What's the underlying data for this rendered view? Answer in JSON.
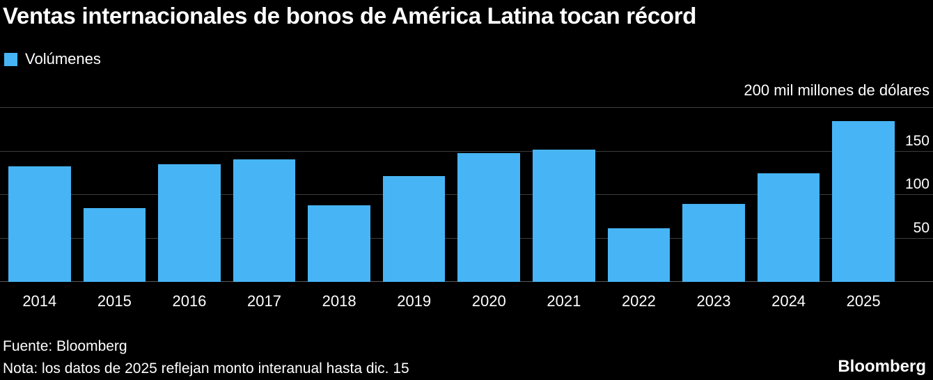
{
  "title": "Ventas internacionales de bonos de América Latina tocan récord",
  "legend": {
    "label": "Volúmenes"
  },
  "axis_note": "200 mil millones de dólares",
  "footer": {
    "source": "Fuente: Bloomberg",
    "note": "Nota: los datos de 2025 reflejan monto interanual hasta dic. 15",
    "brand": "Bloomberg"
  },
  "colors": {
    "background": "#000000",
    "bar": "#47b5f5",
    "grid": "#3d3d3d",
    "baseline": "#585858",
    "text": "#ffffff"
  },
  "chart_data": {
    "type": "bar",
    "title": "Ventas internacionales de bonos de América Latina tocan récord",
    "series_name": "Volúmenes",
    "categories": [
      "2014",
      "2015",
      "2016",
      "2017",
      "2018",
      "2019",
      "2020",
      "2021",
      "2022",
      "2023",
      "2024",
      "2025"
    ],
    "values": [
      133,
      85,
      135,
      141,
      88,
      122,
      148,
      152,
      62,
      90,
      125,
      185
    ],
    "xlabel": "",
    "ylabel": "mil millones de dólares",
    "ylim": [
      0,
      200
    ],
    "yticks": [
      50,
      100,
      150,
      200
    ],
    "ytick_labels_shown": [
      "50",
      "100",
      "150"
    ],
    "grid": true,
    "legend_position": "top-left",
    "y_axis_side": "right"
  }
}
